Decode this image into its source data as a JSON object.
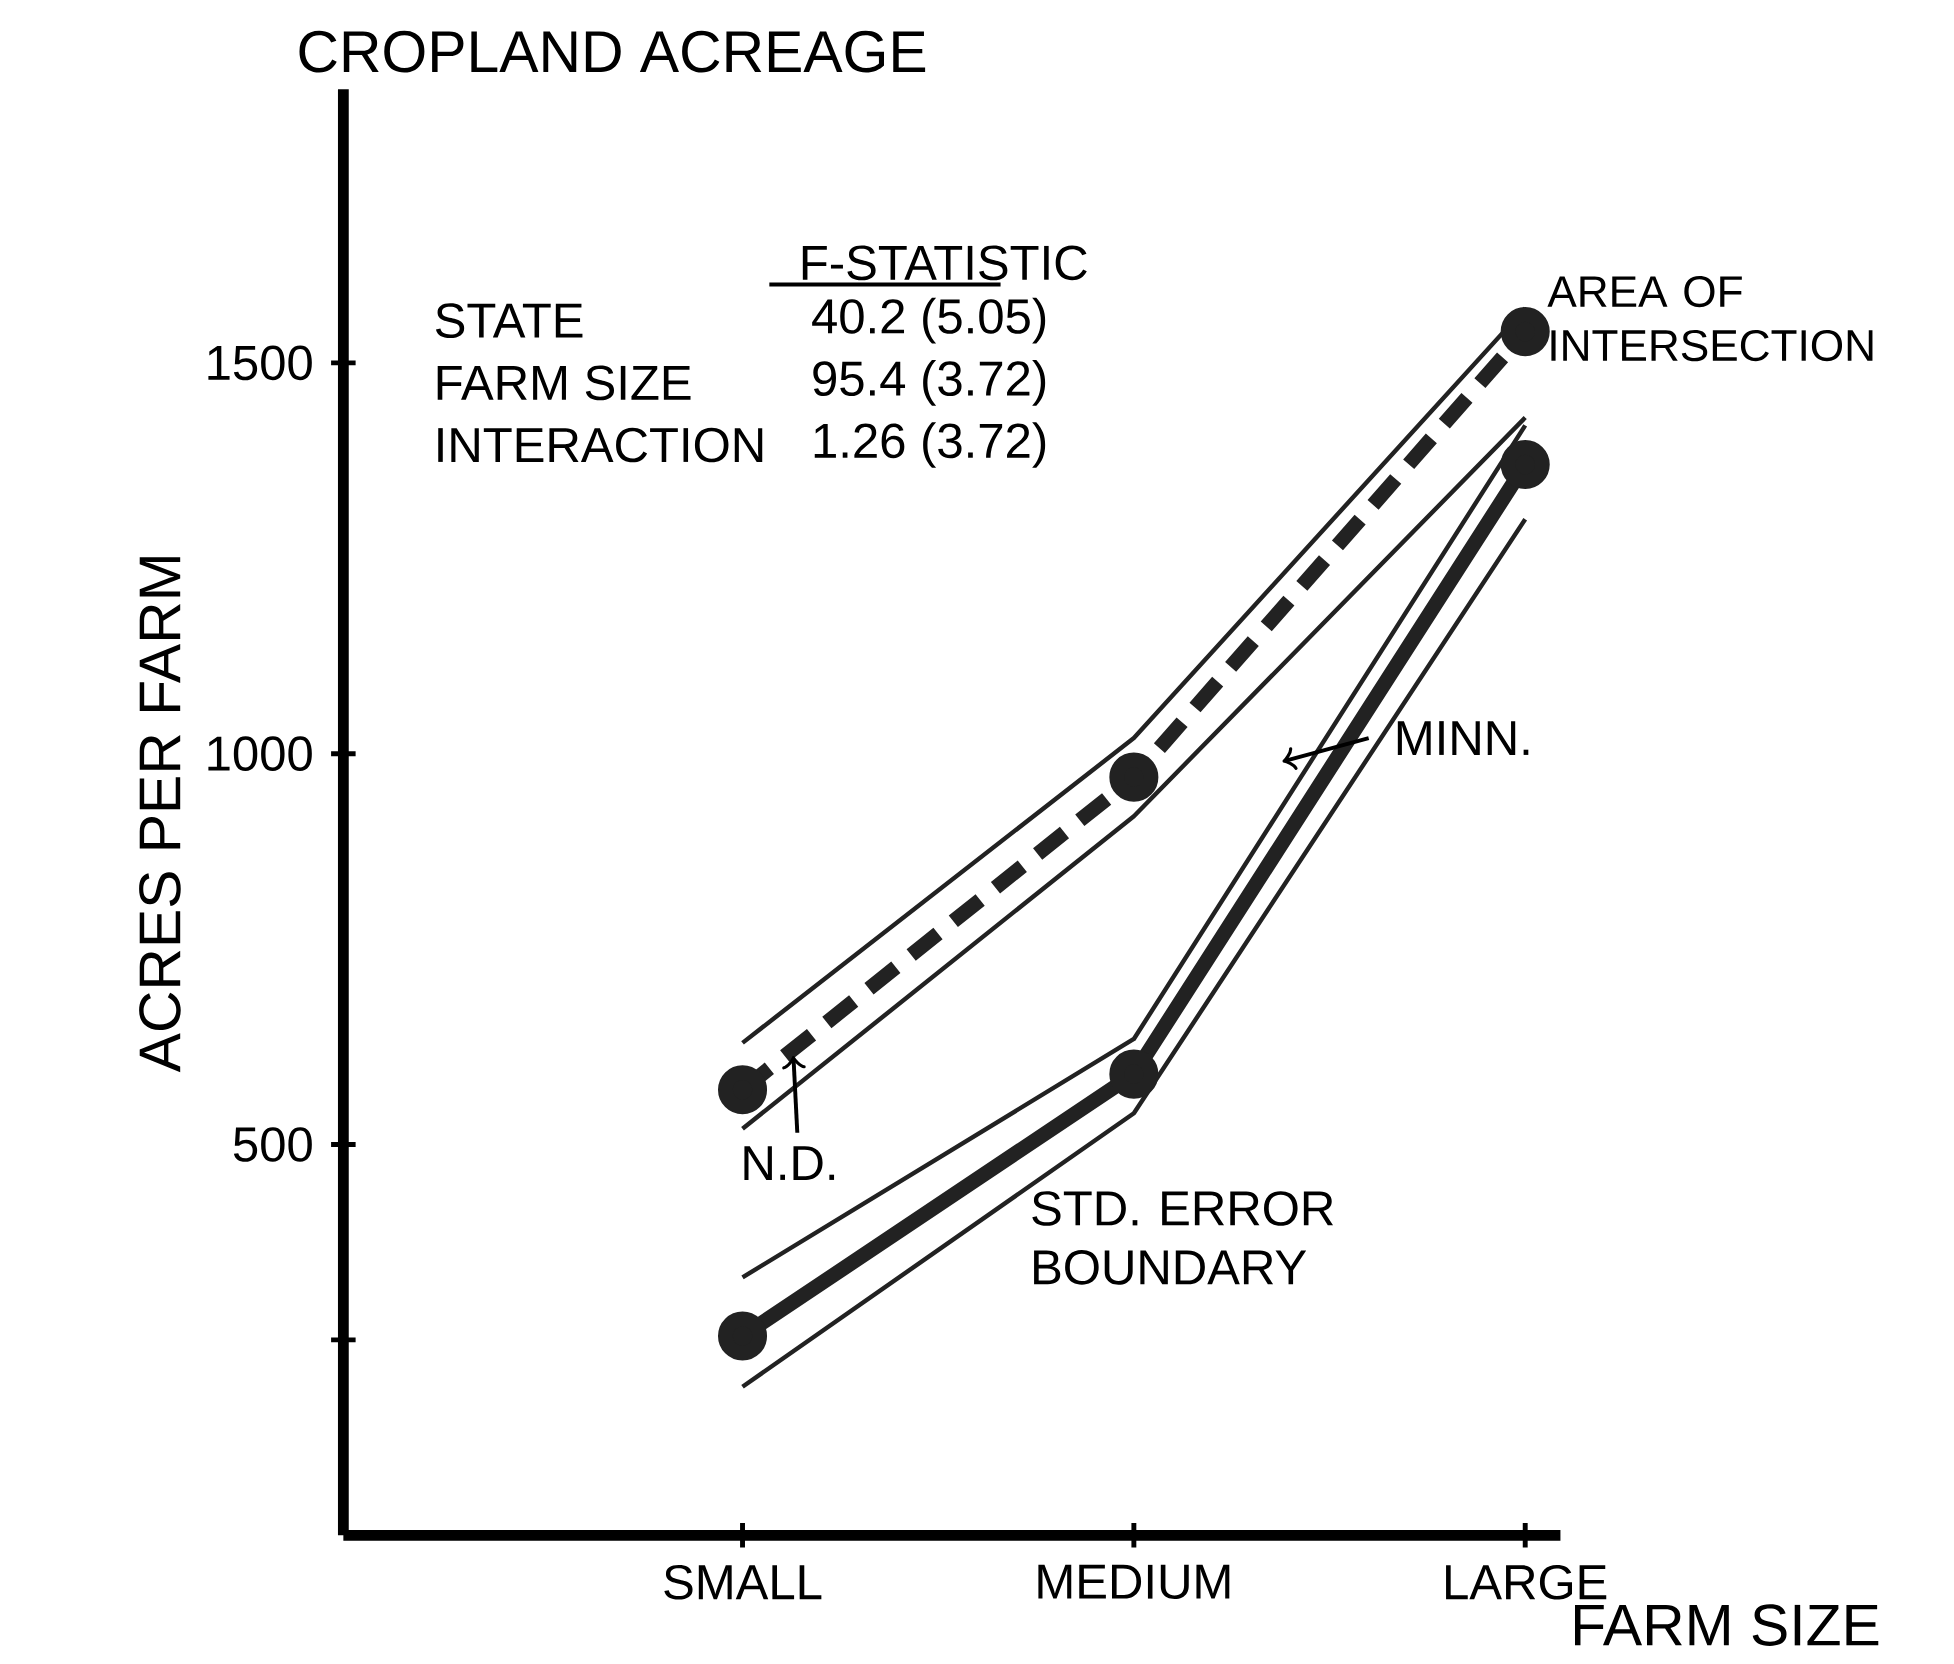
{
  "chart_data": {
    "type": "line",
    "title": "CROPLAND ACREAGE",
    "xlabel": "FARM SIZE",
    "ylabel": "ACRES PER FARM",
    "categories": [
      "SMALL",
      "MEDIUM",
      "LARGE"
    ],
    "series": [
      {
        "color": "#222222",
        "values": [
          630,
          1020,
          1570
        ],
        "line_style": "solid",
        "marker": "none"
      },
      {
        "color": "#222222",
        "values": [
          520,
          920,
          1430
        ],
        "line_style": "solid",
        "marker": "none"
      },
      {
        "name": "N.D.",
        "color": "#222222",
        "values": [
          570,
          970,
          1540
        ],
        "line_style": "dashed",
        "marker": "circle"
      },
      {
        "color": "#222222",
        "values": [
          330,
          635,
          1420
        ],
        "line_style": "solid",
        "marker": "none"
      },
      {
        "color": "#222222",
        "values": [
          190,
          540,
          1300
        ],
        "line_style": "solid",
        "marker": "none"
      },
      {
        "name": "MINN.",
        "color": "#222222",
        "values": [
          255,
          590,
          1370
        ],
        "line_style": "solid",
        "marker": "circle"
      }
    ],
    "ylim": [
      0,
      1850
    ],
    "yticks": [
      {
        "value": 250,
        "label": null
      },
      500,
      1000,
      1500
    ],
    "annotations": [
      "F-STATISTIC",
      "STATE",
      "40.2 (5.05)",
      "FARM SIZE",
      "95.4 (3.72)",
      "INTERACTION",
      "1.26 (3.72)",
      "STD. ERROR BOUNDARY",
      "AREA OF INTERSECTION"
    ]
  }
}
